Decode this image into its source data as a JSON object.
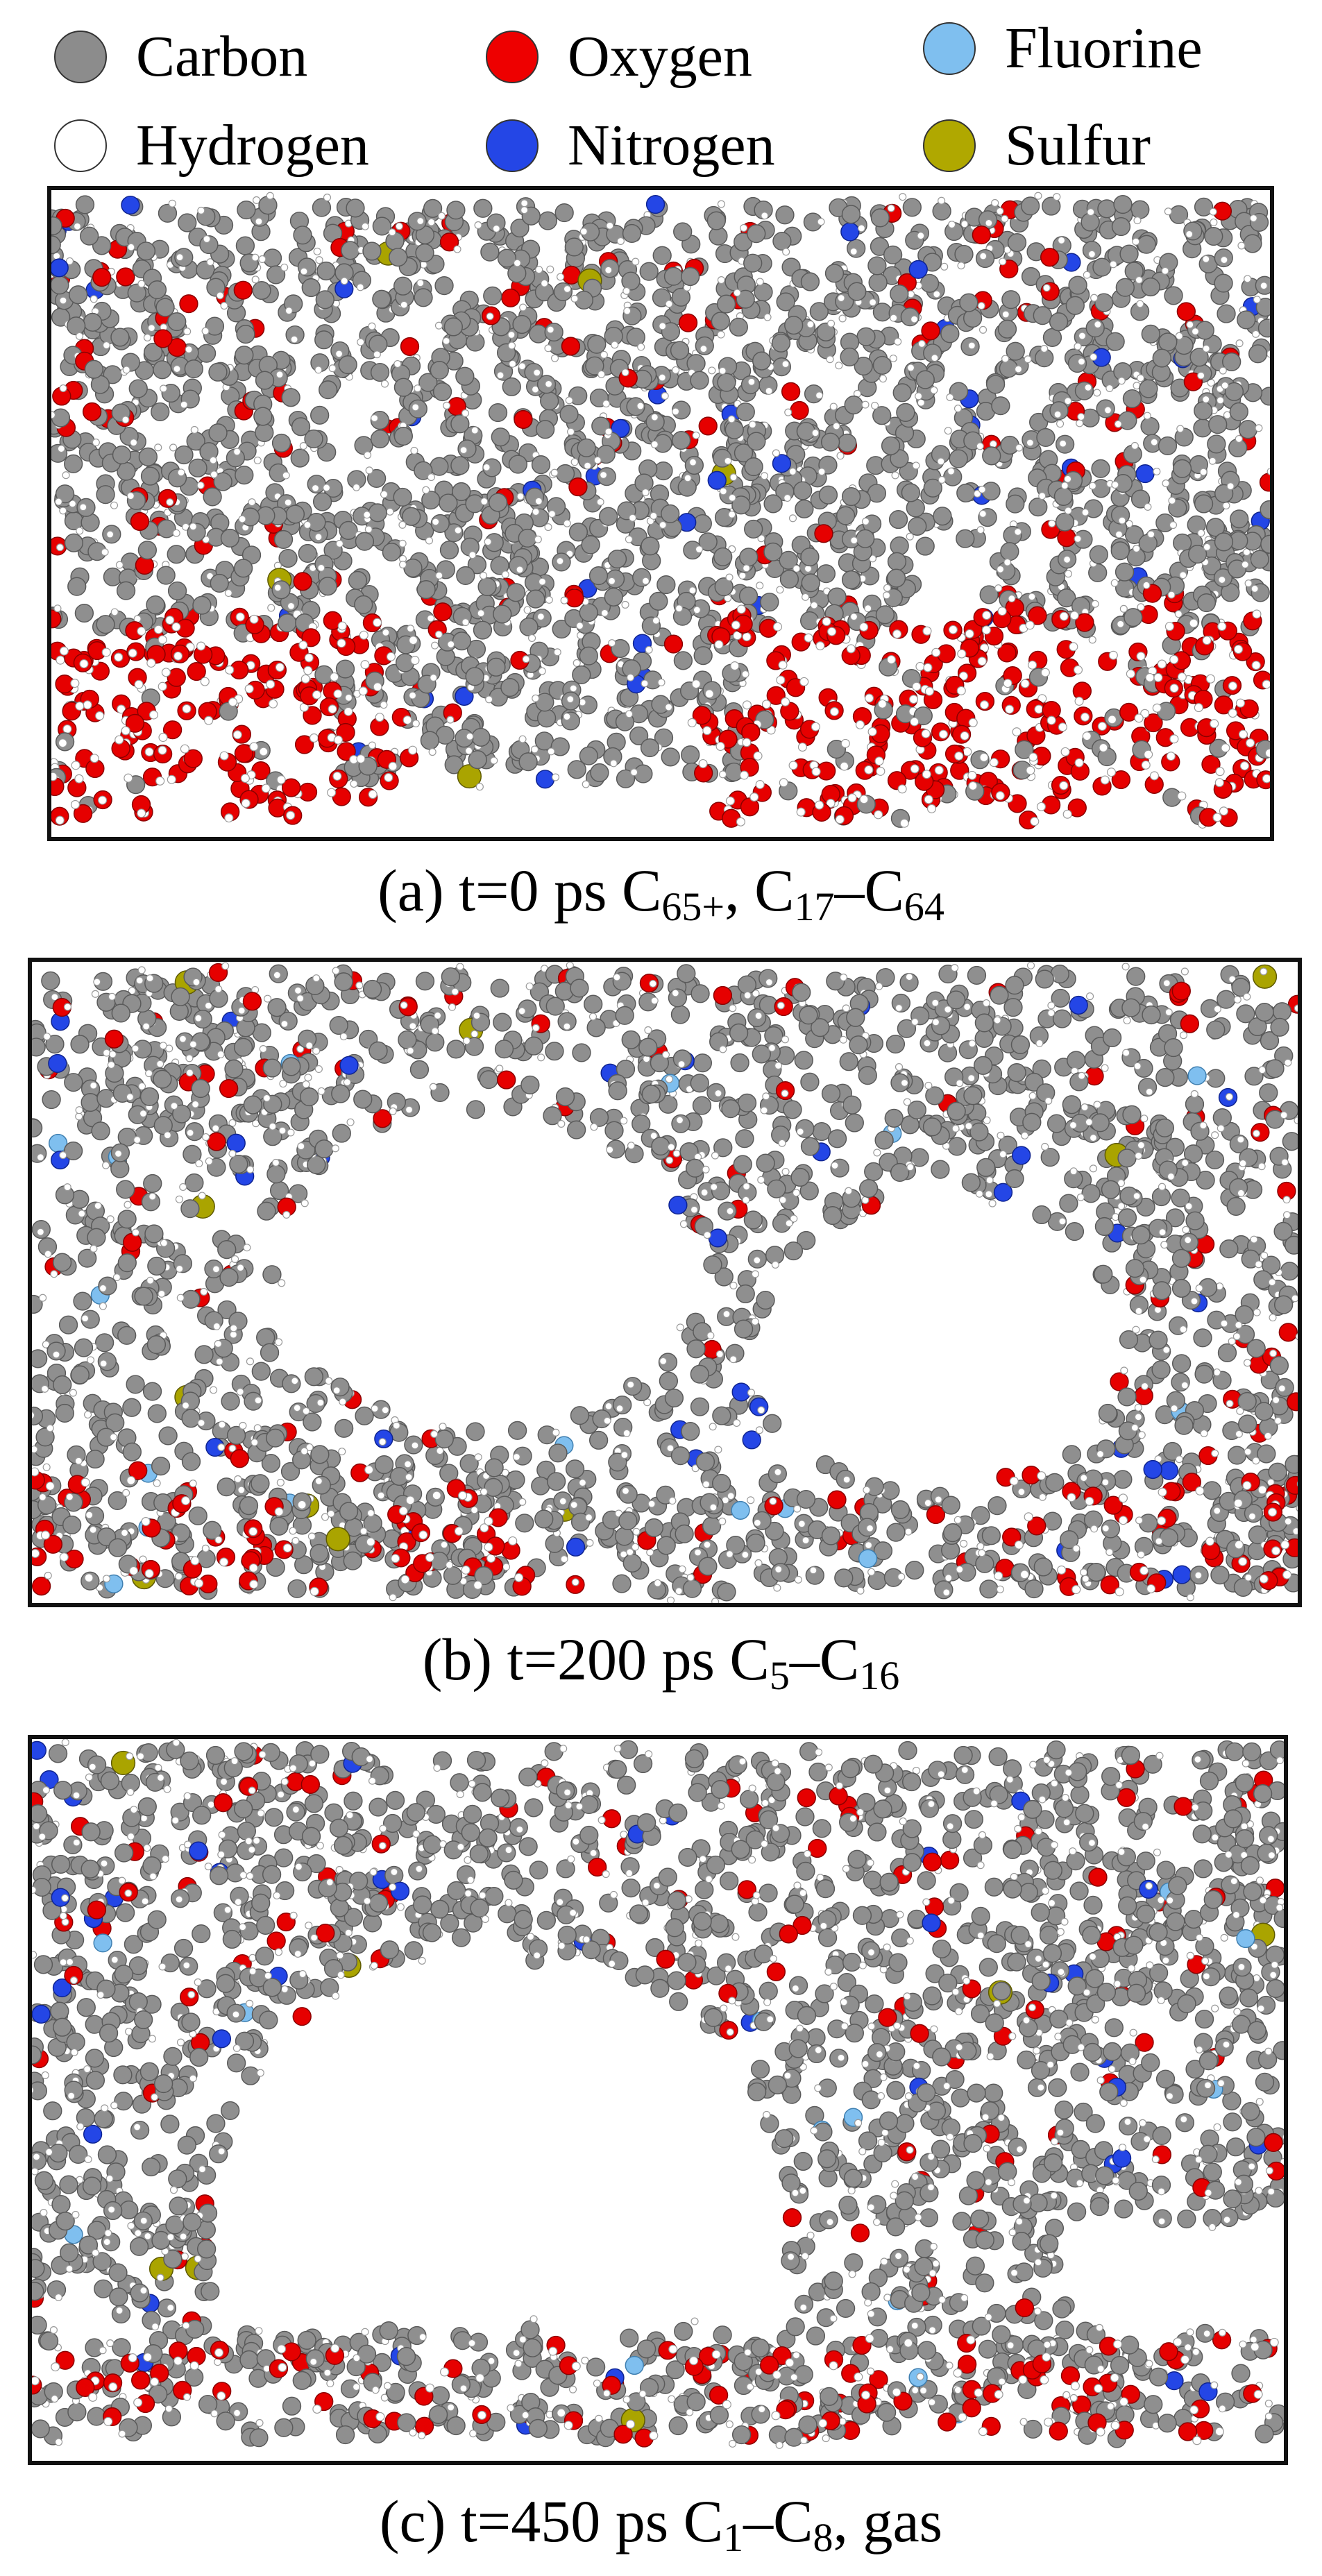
{
  "legend": {
    "items": [
      {
        "label": "Carbon",
        "color": "#8c8c8c"
      },
      {
        "label": "Oxygen",
        "color": "#ee0000"
      },
      {
        "label": "Fluorine",
        "color": "#7fbfef"
      },
      {
        "label": "Hydrogen",
        "color": "#ffffff"
      },
      {
        "label": "Nitrogen",
        "color": "#2446e6"
      },
      {
        "label": "Sulfur",
        "color": "#b0a800"
      }
    ]
  },
  "panels": [
    {
      "id": "a",
      "caption_prefix": "(a) t=0 ps C",
      "c1_sub": "65+",
      "caption_mid1": ", C",
      "c2_sub": "17",
      "caption_mid2": "–C",
      "c3_sub": "64",
      "caption_suffix": ""
    },
    {
      "id": "b",
      "caption_prefix": "(b) t=200 ps C",
      "c1_sub": "5",
      "caption_mid1": "–C",
      "c2_sub": "16",
      "caption_suffix": ""
    },
    {
      "id": "c",
      "caption_prefix": "(c) t=450 ps C",
      "c1_sub": "1",
      "caption_mid1": "–C",
      "c2_sub": "8",
      "caption_suffix": ", gas"
    }
  ]
}
